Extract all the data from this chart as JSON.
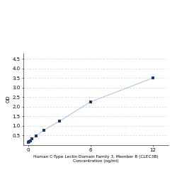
{
  "x": [
    0.0,
    0.094,
    0.188,
    0.375,
    0.75,
    1.5,
    3.0,
    6.0,
    12.0
  ],
  "y": [
    0.15,
    0.18,
    0.22,
    0.32,
    0.48,
    0.78,
    1.25,
    2.25,
    3.5
  ],
  "line_color": "#aac8df",
  "marker_color": "#1a3a6b",
  "marker_size": 3.5,
  "xlabel_line1": "Human C-Type Lectin Domain Family 3, Member B (CLEC3B)",
  "xlabel_line2": "Concentration (ng/ml)",
  "ylabel": "OD",
  "xlim": [
    -0.5,
    13.5
  ],
  "ylim": [
    0,
    4.8
  ],
  "yticks": [
    0.5,
    1.0,
    1.5,
    2.0,
    2.5,
    3.0,
    3.5,
    4.0,
    4.5
  ],
  "xticks": [
    0,
    6,
    12
  ],
  "grid_color": "#cccccc",
  "bg_color": "#ffffff",
  "xlabel_fontsize": 4.2,
  "ylabel_fontsize": 5,
  "tick_fontsize": 5
}
